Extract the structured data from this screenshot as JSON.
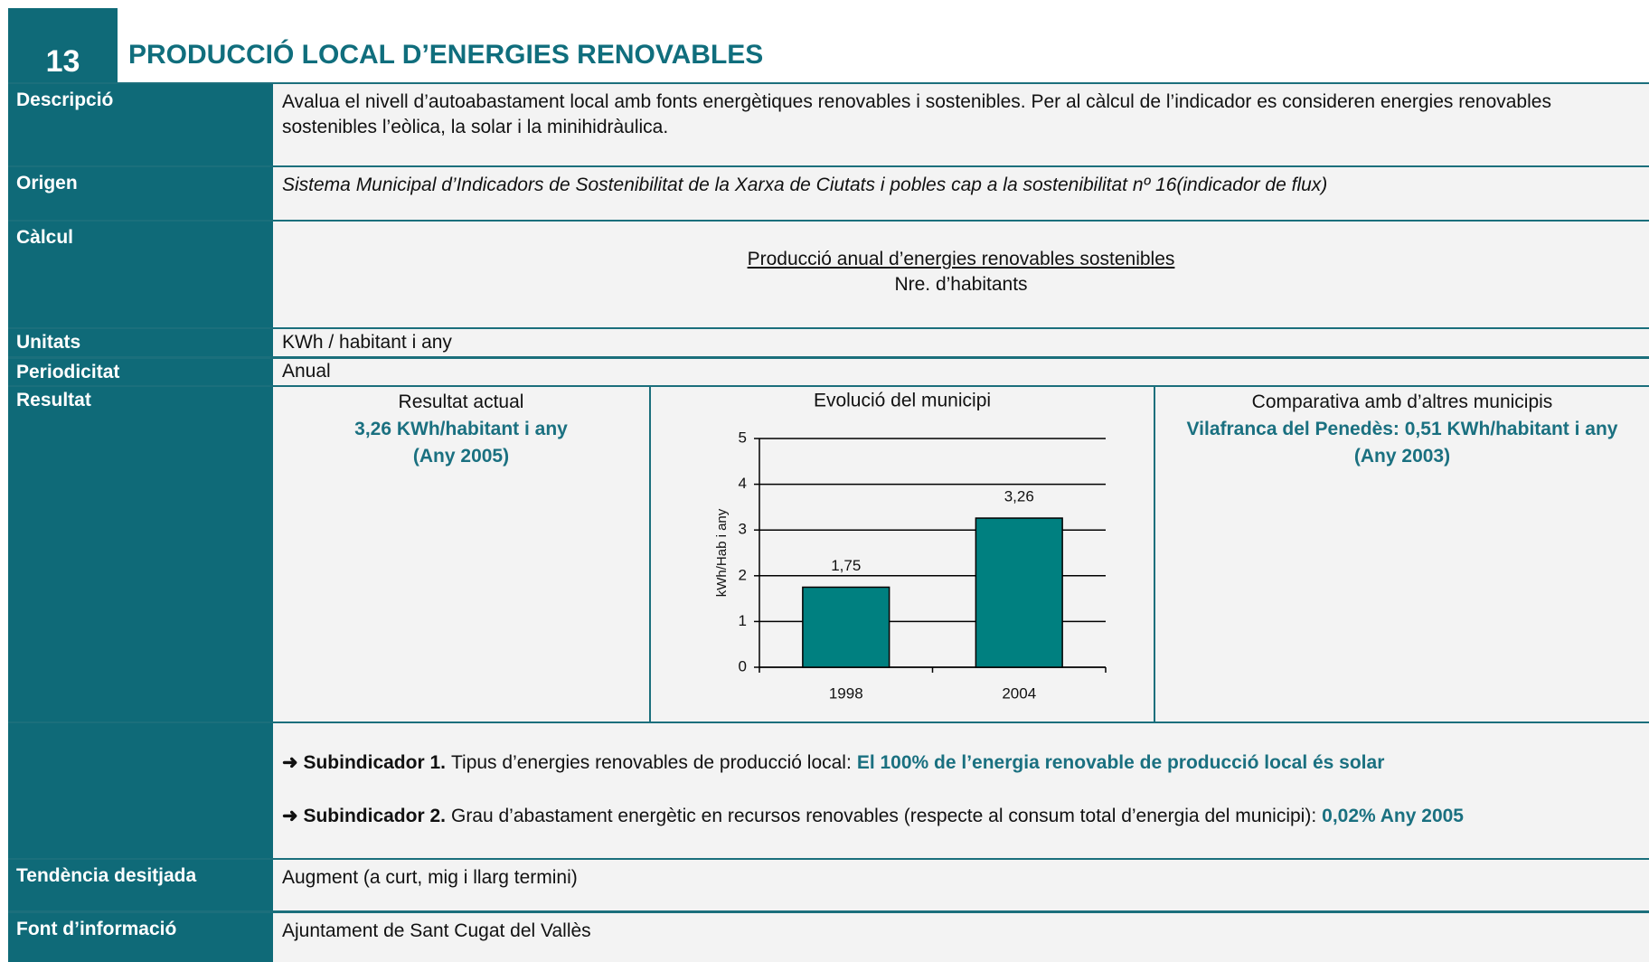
{
  "header": {
    "number": "13",
    "title": "PRODUCCIÓ LOCAL D’ENERGIES RENOVABLES"
  },
  "rows": {
    "description": {
      "label": "Descripció",
      "text": "Avalua el nivell d’autoabastament local amb fonts energètiques renovables i sostenibles. Per al càlcul de l’indicador es consideren energies renovables sostenibles l’eòlica, la solar i la minihidràulica."
    },
    "origin": {
      "label": "Origen",
      "text": "Sistema Municipal d’Indicadors de Sostenibilitat  de la Xarxa de Ciutats i pobles cap a la sostenibilitat nº 16(indicador de flux)"
    },
    "calculation": {
      "label": "Càlcul",
      "numerator": "Producció anual d’energies renovables sostenibles",
      "denominator": "Nre. d’habitants"
    },
    "units": {
      "label": "Unitats",
      "text": "KWh / habitant i any"
    },
    "periodicity": {
      "label": "Periodicitat",
      "text": "Anual"
    },
    "result": {
      "label": "Resultat",
      "current": {
        "title": "Resultat actual",
        "value": "3,26 KWh/habitant i any",
        "year": "(Any 2005)"
      },
      "comparison": {
        "title": "Comparativa amb d’altres municipis",
        "value": "Vilafranca del Penedès: 0,51 KWh/habitant i any",
        "year": "(Any 2003)"
      }
    },
    "subindicators": [
      {
        "label": "Subindicador 1.",
        "text": "Tipus d’energies renovables de producció local:",
        "highlight": "El 100% de l’energia renovable de producció local és solar"
      },
      {
        "label": "Subindicador 2.",
        "text": "Grau d’abastament energètic en recursos renovables (respecte al consum total d’energia del municipi):",
        "highlight": "0,02% Any 2005"
      }
    ],
    "trend": {
      "label": "Tendència desitjada",
      "text": "Augment (a curt, mig i llarg termini)"
    },
    "source": {
      "label": "Font d’informació",
      "text": "Ajuntament de Sant Cugat del Vallès"
    }
  },
  "chart_data": {
    "type": "bar",
    "title": "Evolució del municipi",
    "y_label": "kWh/Hab i any",
    "categories": [
      "1998",
      "2004"
    ],
    "values": [
      1.75,
      3.26
    ],
    "value_labels": [
      "1,75",
      "3,26"
    ],
    "color": "#008080",
    "ylim": [
      0,
      5
    ],
    "yticks": [
      0,
      1,
      2,
      3,
      4,
      5
    ],
    "grid": true
  }
}
